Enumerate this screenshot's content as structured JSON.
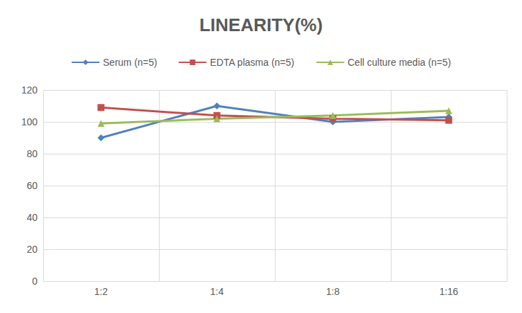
{
  "chart_data": {
    "type": "line",
    "title": "LINEARITY(%)",
    "categories": [
      "1:2",
      "1:4",
      "1:8",
      "1:16"
    ],
    "series": [
      {
        "name": "Serum (n=5)",
        "color": "#4f81bd",
        "marker": "diamond",
        "values": [
          90,
          110,
          100,
          103
        ]
      },
      {
        "name": "EDTA plasma (n=5)",
        "color": "#c0504d",
        "marker": "square",
        "values": [
          109,
          104,
          102,
          101
        ]
      },
      {
        "name": "Cell culture media (n=5)",
        "color": "#9bbb59",
        "marker": "triangle",
        "values": [
          99,
          102,
          104,
          107
        ]
      }
    ],
    "ylim": [
      0,
      120
    ],
    "yticks": [
      0,
      20,
      40,
      60,
      80,
      100,
      120
    ],
    "grid": true,
    "legend": "top"
  }
}
